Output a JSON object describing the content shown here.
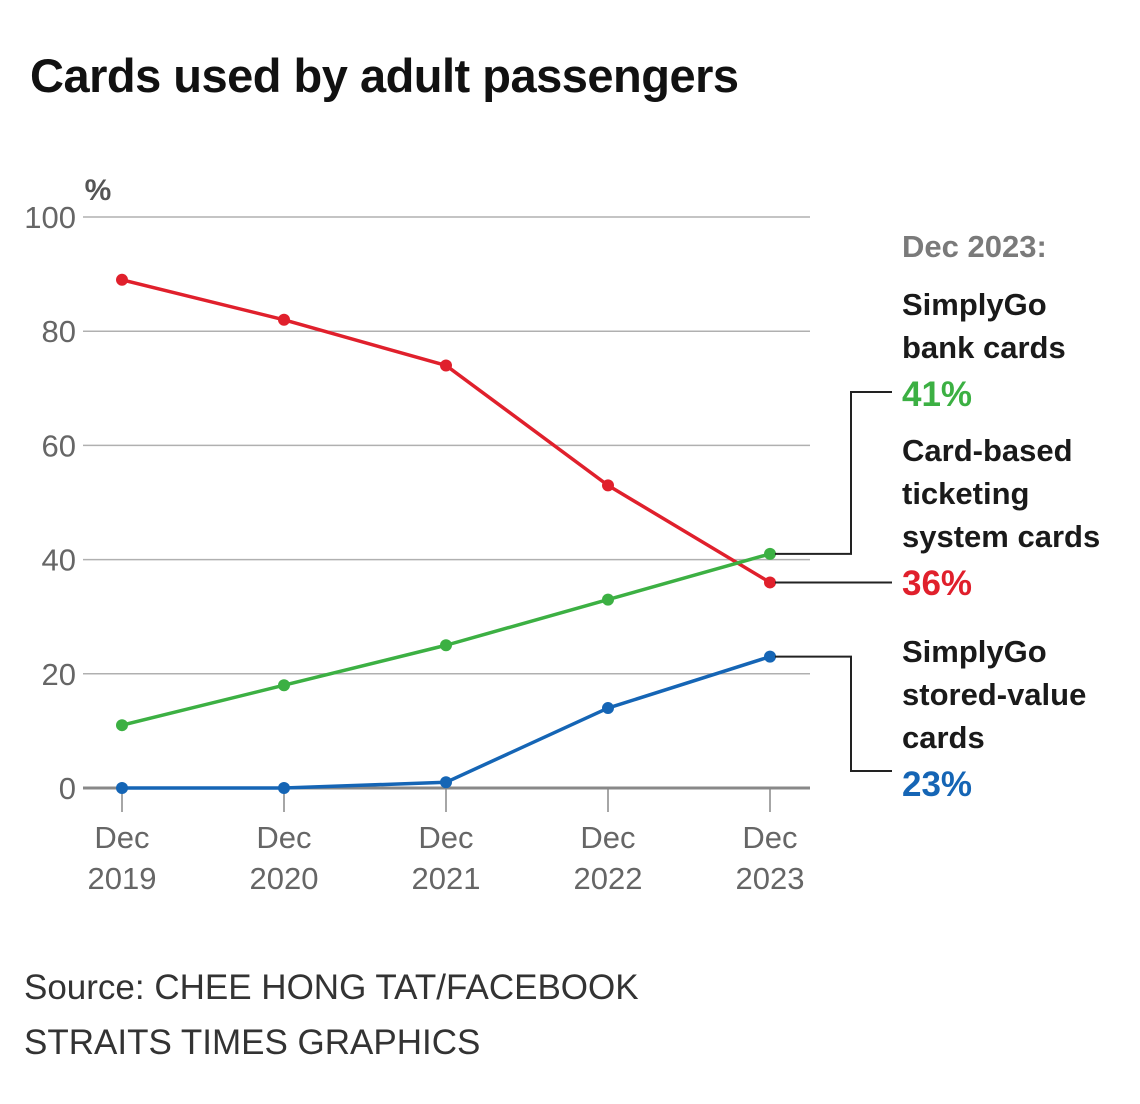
{
  "chart_data": {
    "type": "line",
    "title": "Cards used by adult passengers",
    "ylabel": "%",
    "xlabel": "",
    "ylim": [
      0,
      100
    ],
    "yticks": [
      0,
      20,
      40,
      60,
      80,
      100
    ],
    "grid": true,
    "legend": "right",
    "categories": [
      {
        "top": "Dec",
        "bottom": "2019"
      },
      {
        "top": "Dec",
        "bottom": "2020"
      },
      {
        "top": "Dec",
        "bottom": "2021"
      },
      {
        "top": "Dec",
        "bottom": "2022"
      },
      {
        "top": "Dec",
        "bottom": "2023"
      }
    ],
    "series": [
      {
        "key": "red",
        "color": "#e0202c",
        "values": [
          89,
          82,
          74,
          53,
          36
        ]
      },
      {
        "key": "green",
        "color": "#3cb043",
        "values": [
          11,
          18,
          25,
          33,
          41
        ]
      },
      {
        "key": "blue",
        "color": "#1565b5",
        "values": [
          0,
          0,
          1,
          14,
          23
        ]
      }
    ],
    "annotation_header": "Dec 2023:",
    "labels": [
      {
        "series": "green",
        "lines": [
          "SimplyGo",
          "bank cards"
        ],
        "value_text": "41%"
      },
      {
        "series": "red",
        "lines": [
          "Card-based",
          "ticketing",
          "system cards"
        ],
        "value_text": "36%"
      },
      {
        "series": "blue",
        "lines": [
          "SimplyGo",
          "stored-value",
          "cards"
        ],
        "value_text": "23%"
      }
    ]
  },
  "footer": {
    "source": "Source: CHEE HONG TAT/FACEBOOK",
    "credit": "STRAITS TIMES GRAPHICS"
  }
}
